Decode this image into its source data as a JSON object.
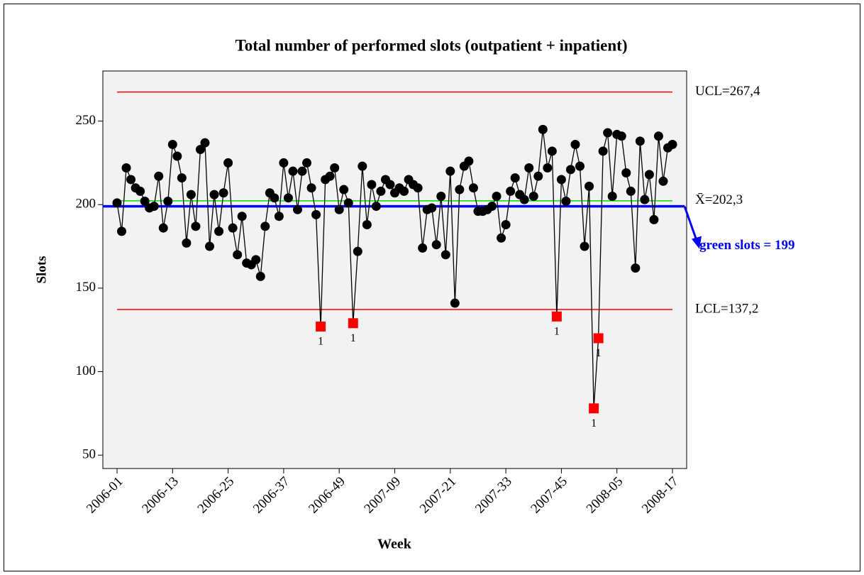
{
  "chart_data": {
    "type": "control",
    "title": "Total number of performed slots (outpatient + inpatient)",
    "x_label": "Week",
    "y_label": "Slots",
    "categories": [
      "2006-01",
      null,
      null,
      null,
      null,
      null,
      null,
      null,
      null,
      null,
      null,
      null,
      "2006-13",
      null,
      null,
      null,
      null,
      null,
      null,
      null,
      null,
      null,
      null,
      null,
      "2006-25",
      null,
      null,
      null,
      null,
      null,
      null,
      null,
      null,
      null,
      null,
      null,
      "2006-37",
      null,
      null,
      null,
      null,
      null,
      null,
      null,
      null,
      null,
      null,
      null,
      "2006-49",
      null,
      null,
      null,
      null,
      null,
      null,
      null,
      null,
      null,
      null,
      null,
      "2007-09",
      null,
      null,
      null,
      null,
      null,
      null,
      null,
      null,
      null,
      null,
      null,
      "2007-21",
      null,
      null,
      null,
      null,
      null,
      null,
      null,
      null,
      null,
      null,
      null,
      "2007-33",
      null,
      null,
      null,
      null,
      null,
      null,
      null,
      null,
      null,
      null,
      null,
      "2007-45",
      null,
      null,
      null,
      null,
      null,
      null,
      null,
      null,
      null,
      null,
      null,
      "2008-05",
      null,
      null,
      null,
      null,
      null,
      null,
      null,
      null,
      null,
      null,
      null,
      "2008-17"
    ],
    "values": [
      201,
      184,
      222,
      215,
      210,
      208,
      202,
      198,
      199,
      217,
      186,
      202,
      236,
      229,
      216,
      177,
      206,
      187,
      233,
      237,
      175,
      206,
      184,
      207,
      225,
      186,
      170,
      193,
      165,
      164,
      167,
      157,
      187,
      207,
      204,
      193,
      225,
      204,
      220,
      197,
      220,
      225,
      210,
      194,
      127,
      215,
      217,
      222,
      197,
      209,
      201,
      129,
      172,
      223,
      188,
      212,
      199,
      208,
      215,
      212,
      207,
      210,
      208,
      215,
      212,
      210,
      174,
      197,
      198,
      176,
      205,
      170,
      220,
      141,
      209,
      223,
      226,
      210,
      196,
      196,
      197,
      199,
      205,
      180,
      188,
      208,
      216,
      206,
      203,
      222,
      205,
      217,
      245,
      222,
      232,
      133,
      215,
      202,
      221,
      236,
      223,
      175,
      211,
      78,
      120,
      232,
      243,
      205,
      242,
      241,
      219,
      208,
      162,
      238,
      203,
      218,
      191,
      241,
      214,
      234,
      236
    ],
    "color": "#000000",
    "flagged": [
      44,
      51,
      95,
      103,
      104
    ],
    "flag_color": "#ff0000",
    "flag_label": "1",
    "reference_lines": [
      {
        "value": 267.4,
        "label": "UCL=267,4",
        "color": "#ff0000"
      },
      {
        "value": 202.3,
        "label": "X̄=202,3",
        "color": "#00dd00"
      },
      {
        "value": 137.2,
        "label": "LCL=137,2",
        "color": "#ff0000"
      }
    ],
    "target": {
      "value": 199,
      "label": "green slots = 199",
      "color": "#0000ff"
    },
    "ylim": [
      42,
      280
    ],
    "yticks": [
      50,
      100,
      150,
      200,
      250
    ]
  }
}
